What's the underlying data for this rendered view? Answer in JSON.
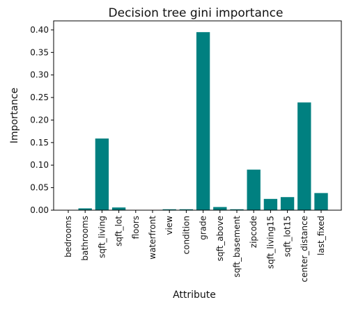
{
  "chart_data": {
    "type": "bar",
    "title": "Decision tree gini importance",
    "xlabel": "Attribute",
    "ylabel": "Importance",
    "categories": [
      "bedrooms",
      "bathrooms",
      "sqft_living",
      "sqft_lot",
      "floors",
      "waterfront",
      "view",
      "condition",
      "grade",
      "sqft_above",
      "sqft_basement",
      "zipcode",
      "sqft_living15",
      "sqft_lot15",
      "center_distance",
      "last_fixed"
    ],
    "values": [
      0.0,
      0.004,
      0.159,
      0.006,
      0.0,
      0.0,
      0.002,
      0.002,
      0.395,
      0.007,
      0.002,
      0.09,
      0.025,
      0.029,
      0.239,
      0.038
    ],
    "ylim": [
      0,
      0.42
    ],
    "yticks": [
      0.0,
      0.05,
      0.1,
      0.15,
      0.2,
      0.25,
      0.3,
      0.35,
      0.4
    ],
    "ytick_labels": [
      "0.00",
      "0.05",
      "0.10",
      "0.15",
      "0.20",
      "0.25",
      "0.30",
      "0.35",
      "0.40"
    ],
    "bar_color": "#008080",
    "grid": false,
    "legend": "none"
  }
}
